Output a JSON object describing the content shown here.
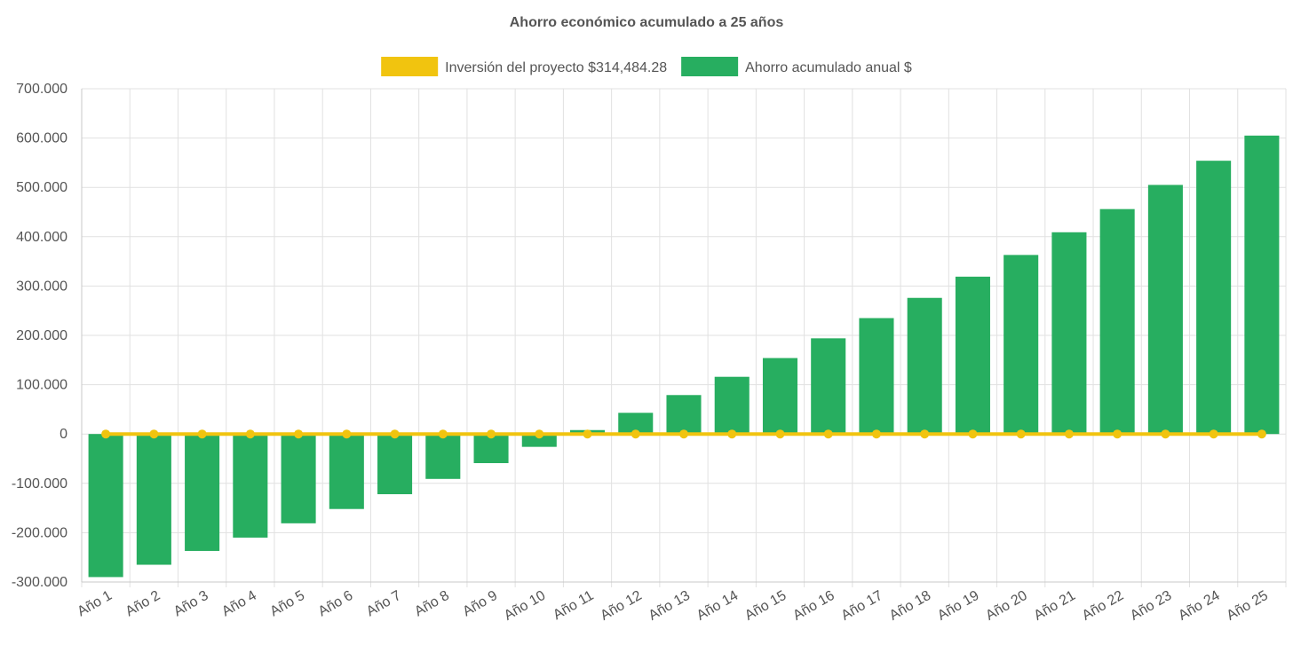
{
  "chart_data": {
    "type": "bar",
    "title": "Ahorro económico acumulado a 25 años",
    "categories": [
      "Año 1",
      "Año 2",
      "Año 3",
      "Año 4",
      "Año 5",
      "Año 6",
      "Año 7",
      "Año 8",
      "Año 9",
      "Año 10",
      "Año 11",
      "Año 12",
      "Año 13",
      "Año 14",
      "Año 15",
      "Año 16",
      "Año 17",
      "Año 18",
      "Año 19",
      "Año 20",
      "Año 21",
      "Año 22",
      "Año 23",
      "Año 24",
      "Año 25"
    ],
    "series": [
      {
        "name": "Inversión del proyecto $314,484.28",
        "kind": "line",
        "color": "#f1c40f",
        "values": [
          0,
          0,
          0,
          0,
          0,
          0,
          0,
          0,
          0,
          0,
          0,
          0,
          0,
          0,
          0,
          0,
          0,
          0,
          0,
          0,
          0,
          0,
          0,
          0,
          0
        ]
      },
      {
        "name": "Ahorro acumulado anual $",
        "kind": "bar",
        "color": "#27ae60",
        "values": [
          -290000,
          -265000,
          -237000,
          -210000,
          -181000,
          -152000,
          -122000,
          -91000,
          -59000,
          -26000,
          8000,
          43000,
          79000,
          116000,
          154000,
          194000,
          235000,
          276000,
          319000,
          363000,
          409000,
          456000,
          505000,
          554000,
          605000
        ]
      }
    ],
    "y_ticks": [
      "700.000",
      "600.000",
      "500.000",
      "400.000",
      "300.000",
      "200.000",
      "100.000",
      "0",
      "-100.000",
      "-200.000",
      "-300.000"
    ],
    "ylim": [
      -300000,
      700000
    ],
    "grid": true,
    "legend_position": "top-center"
  }
}
